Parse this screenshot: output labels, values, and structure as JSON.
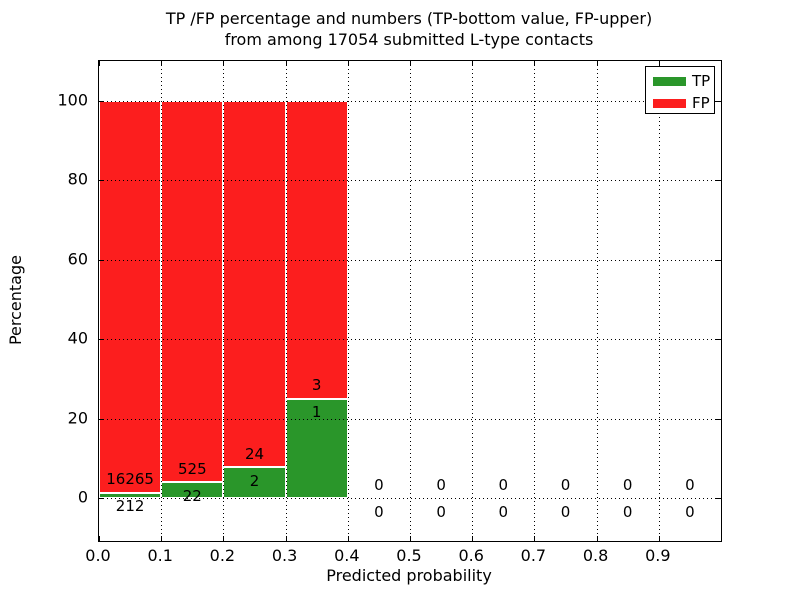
{
  "chart_data": {
    "type": "bar",
    "stacked": true,
    "title_line1": "TP /FP percentage and numbers (TP-bottom value, FP-upper)",
    "title_line2": "from among 17054 submitted L-type contacts",
    "xlabel": "Predicted probability",
    "ylabel": "Percentage",
    "total_submitted_contacts": 17054,
    "x_tick_labels": [
      "0.0",
      "0.1",
      "0.2",
      "0.3",
      "0.4",
      "0.5",
      "0.6",
      "0.7",
      "0.8",
      "0.9"
    ],
    "x_tick_values": [
      0.0,
      0.1,
      0.2,
      0.3,
      0.4,
      0.5,
      0.6,
      0.7,
      0.8,
      0.9
    ],
    "y_tick_values": [
      0,
      20,
      40,
      60,
      80,
      100
    ],
    "xlim": [
      0.0,
      1.0
    ],
    "ylim": [
      -11.3,
      110.3
    ],
    "grid": "dotted, drawn above bars",
    "legend": {
      "position": "upper right",
      "items": [
        {
          "label": "TP",
          "color": "#2a962a"
        },
        {
          "label": "FP",
          "color": "#fc1e1e"
        }
      ]
    },
    "series_note": "Each 0.1-wide probability bin is a 100%-stacked bar: TP share (green, bottom) and FP share (red, top). Counts are annotated at the TP/FP boundary: FP count above, TP count below.",
    "bins": [
      {
        "range": [
          0.0,
          0.1
        ],
        "tp_count": 212,
        "fp_count": 16265,
        "tp_pct": 1.29,
        "fp_pct": 98.71
      },
      {
        "range": [
          0.1,
          0.2
        ],
        "tp_count": 22,
        "fp_count": 525,
        "tp_pct": 4.02,
        "fp_pct": 95.98
      },
      {
        "range": [
          0.2,
          0.3
        ],
        "tp_count": 2,
        "fp_count": 24,
        "tp_pct": 7.69,
        "fp_pct": 92.31
      },
      {
        "range": [
          0.3,
          0.4
        ],
        "tp_count": 1,
        "fp_count": 3,
        "tp_pct": 25.0,
        "fp_pct": 75.0
      },
      {
        "range": [
          0.4,
          0.5
        ],
        "tp_count": 0,
        "fp_count": 0,
        "tp_pct": 0,
        "fp_pct": 0
      },
      {
        "range": [
          0.5,
          0.6
        ],
        "tp_count": 0,
        "fp_count": 0,
        "tp_pct": 0,
        "fp_pct": 0
      },
      {
        "range": [
          0.6,
          0.7
        ],
        "tp_count": 0,
        "fp_count": 0,
        "tp_pct": 0,
        "fp_pct": 0
      },
      {
        "range": [
          0.7,
          0.8
        ],
        "tp_count": 0,
        "fp_count": 0,
        "tp_pct": 0,
        "fp_pct": 0
      },
      {
        "range": [
          0.8,
          0.9
        ],
        "tp_count": 0,
        "fp_count": 0,
        "tp_pct": 0,
        "fp_pct": 0
      },
      {
        "range": [
          0.9,
          1.0
        ],
        "tp_count": 0,
        "fp_count": 0,
        "tp_pct": 0,
        "fp_pct": 0
      }
    ],
    "colors": {
      "tp_green": "#2a962a",
      "fp_red": "#fc1e1e",
      "bar_edge": "#ffffff",
      "grid": "#000000",
      "text": "#000000",
      "background": "#ffffff"
    }
  }
}
